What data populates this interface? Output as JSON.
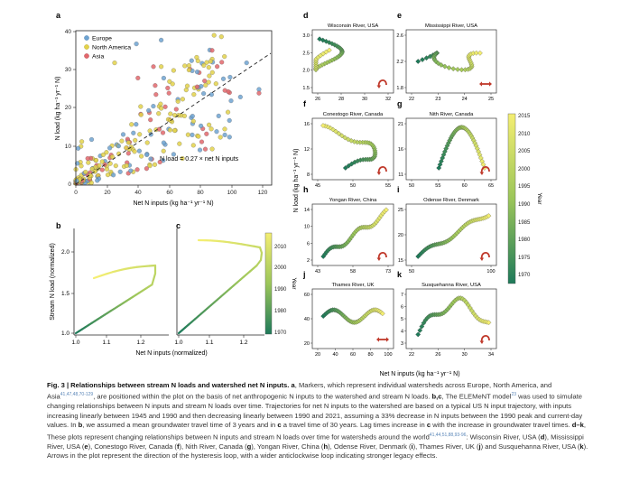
{
  "figure": {
    "colors": {
      "europe": "#6ea3d1",
      "north_america": "#e3d24a",
      "asia": "#e2676c",
      "cmap_low": "#1e7a5a",
      "cmap_mid": "#9cc65a",
      "cmap_high": "#f4ee72",
      "arrow": "#c0392b"
    },
    "panel_a": {
      "letter": "a",
      "xlabel": "Net N inputs (kg ha⁻¹ yr⁻¹ N)",
      "ylabel": "N load (kg ha⁻¹ yr⁻¹ N)",
      "annotation": "N load = 0.27 × net N inputs",
      "legend": [
        "Europe",
        "North America",
        "Asia"
      ],
      "xticks": [
        "0",
        "20",
        "40",
        "60",
        "80",
        "100",
        "120"
      ],
      "yticks": [
        "0",
        "10",
        "20",
        "30",
        "40"
      ]
    },
    "panel_b": {
      "letter": "b",
      "ylabel": "Stream N load (normalized)",
      "xticks": [
        "1.0",
        "1.1",
        "1.2"
      ],
      "yticks": [
        "1.0",
        "1.5",
        "2.0"
      ]
    },
    "panel_c": {
      "letter": "c",
      "xticks": [
        "1.0",
        "1.1",
        "1.2"
      ]
    },
    "bc_xlabel": "Net N inputs (normalized)",
    "bc_colorbar": {
      "label": "Year",
      "ticks": [
        "2010",
        "2000",
        "1990",
        "1980",
        "1970"
      ]
    },
    "right_ylabel": "N load (kg ha⁻¹ yr⁻¹ N)",
    "right_xlabel": "Net N inputs (kg ha⁻¹ yr⁻¹ N)",
    "right_colorbar": {
      "label": "Year",
      "ticks": [
        "2015",
        "2010",
        "2005",
        "2000",
        "1995",
        "1990",
        "1985",
        "1980",
        "1975",
        "1970"
      ]
    },
    "small_panels": [
      {
        "letter": "d",
        "title": "Wisconsin River, USA",
        "xticks": [
          "26",
          "28",
          "30",
          "32"
        ],
        "yticks": [
          "1.5",
          "2.0",
          "2.5",
          "3.0"
        ]
      },
      {
        "letter": "e",
        "title": "Mississippi River, USA",
        "xticks": [
          "22",
          "23",
          "24",
          "25"
        ],
        "yticks": [
          "1.8",
          "2.2",
          "2.6"
        ]
      },
      {
        "letter": "f",
        "title": "Conestogo River, Canada",
        "xticks": [
          "45",
          "50",
          "55"
        ],
        "yticks": [
          "8",
          "12",
          "16"
        ]
      },
      {
        "letter": "g",
        "title": "Nith River, Canada",
        "xticks": [
          "50",
          "55",
          "60",
          "65"
        ],
        "yticks": [
          "11",
          "16",
          "21"
        ]
      },
      {
        "letter": "h",
        "title": "Yongan River, China",
        "xticks": [
          "43",
          "58",
          "73"
        ],
        "yticks": [
          "2",
          "6",
          "10",
          "14"
        ]
      },
      {
        "letter": "i",
        "title": "Odense River, Denmark",
        "xticks": [
          "50",
          "100"
        ],
        "yticks": [
          "15",
          "20",
          "25"
        ]
      },
      {
        "letter": "j",
        "title": "Thames River, UK",
        "xticks": [
          "20",
          "40",
          "60",
          "80",
          "100"
        ],
        "yticks": [
          "20",
          "40",
          "60"
        ]
      },
      {
        "letter": "k",
        "title": "Susquehanna River, USA",
        "xticks": [
          "22",
          "26",
          "30",
          "34"
        ],
        "yticks": [
          "3",
          "4",
          "5",
          "6",
          "7"
        ]
      }
    ]
  },
  "caption": {
    "lead": "Fig. 3 | Relationships between stream N loads and watershed net N inputs.",
    "l_a": "a",
    "t_a": ", Markers, which represent individual watersheds across Europe, North America, and Asia",
    "r_a": "41,47,48,70-129",
    "t_a2": ", are positioned within the plot on the basis of net anthropogenic N inputs to the watershed and stream N loads.",
    "l_bc": "b,c",
    "t_bc": ", The ELEMeNT model",
    "r_bc": "23",
    "t_bc2": " was used to simulate changing relationships between N inputs and stream N loads over time. Trajectories for net N inputs to the watershed are based on a typical US N input trajectory, with inputs increasing linearly between 1945 and 1990 and then decreasing linearly between 1990 and 2021, assuming a 33% decrease in N inputs between the 1990 peak and current-day values. In",
    "l_b": "b",
    "t_b": ", we assumed a mean groundwater travel time of 3 years and in",
    "l_c": "c",
    "t_c": " a travel time of 30 years. Lag times increase in",
    "l_c2": "c",
    "t_c2": " with the increase in groundwater travel times.",
    "l_dk": "d–k",
    "t_dk": ", These plots represent changing relationships between N inputs and stream N loads over time for watersheds around the world",
    "r_dk": "41,44,51,88,93-96",
    "t_d": ": Wisconsin River, USA (",
    "l_d": "d",
    "t_e": "), Mississippi River, USA (",
    "l_e": "e",
    "t_f": "), Conestogo River, Canada (",
    "l_f": "f",
    "t_g": "), Nith River, Canada (",
    "l_g": "g",
    "t_h": "), Yongan River, China (",
    "l_h": "h",
    "t_i": "), Odense River, Denmark (",
    "l_i": "i",
    "t_j": "), Thames River, UK (",
    "l_j": "j",
    "t_k": ") and Susquehanna River, USA (",
    "l_k": "k",
    "t_end": "). Arrows in the plot represent the direction of the hysteresis loop, with a wider anticlockwise loop indicating stronger legacy effects."
  }
}
